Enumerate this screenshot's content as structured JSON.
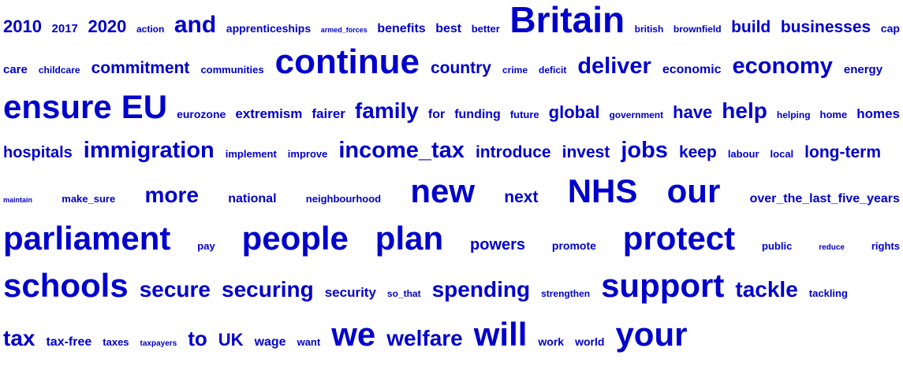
{
  "color": "#0000cc",
  "rows": [
    {
      "words": [
        {
          "text": "2010",
          "size": 22
        },
        {
          "text": "2017",
          "size": 15
        },
        {
          "text": "2020",
          "size": 22
        },
        {
          "text": "action",
          "size": 12
        },
        {
          "text": "and",
          "size": 30
        },
        {
          "text": "apprenticeships",
          "size": 14
        },
        {
          "text": "armed_forces",
          "size": 9
        },
        {
          "text": "benefits",
          "size": 16
        },
        {
          "text": "best",
          "size": 16
        },
        {
          "text": "better",
          "size": 13
        },
        {
          "text": "Britain",
          "size": 46
        },
        {
          "text": "british",
          "size": 12
        },
        {
          "text": "brownfield",
          "size": 12
        },
        {
          "text": "build",
          "size": 21
        },
        {
          "text": "businesses",
          "size": 21
        },
        {
          "text": "cap",
          "size": 14
        }
      ]
    },
    {
      "words": [
        {
          "text": "care",
          "size": 15
        },
        {
          "text": "childcare",
          "size": 12
        },
        {
          "text": "commitment",
          "size": 21
        },
        {
          "text": "communities",
          "size": 13
        },
        {
          "text": "continue",
          "size": 44
        },
        {
          "text": "country",
          "size": 21
        },
        {
          "text": "crime",
          "size": 12
        },
        {
          "text": "deficit",
          "size": 12
        },
        {
          "text": "deliver",
          "size": 29
        },
        {
          "text": "economic",
          "size": 16
        },
        {
          "text": "economy",
          "size": 29
        },
        {
          "text": "energy",
          "size": 15
        }
      ]
    },
    {
      "words": [
        {
          "text": "ensure",
          "size": 42
        },
        {
          "text": "EU",
          "size": 42
        },
        {
          "text": "eurozone",
          "size": 14
        },
        {
          "text": "extremism",
          "size": 17
        },
        {
          "text": "fairer",
          "size": 17
        },
        {
          "text": "family",
          "size": 28
        },
        {
          "text": "for",
          "size": 16
        },
        {
          "text": "funding",
          "size": 16
        },
        {
          "text": "future",
          "size": 13
        },
        {
          "text": "global",
          "size": 22
        },
        {
          "text": "government",
          "size": 12
        },
        {
          "text": "have",
          "size": 22
        },
        {
          "text": "help",
          "size": 28
        },
        {
          "text": "helping",
          "size": 12
        },
        {
          "text": "home",
          "size": 13
        },
        {
          "text": "homes",
          "size": 17
        }
      ]
    },
    {
      "words": [
        {
          "text": "hospitals",
          "size": 20
        },
        {
          "text": "immigration",
          "size": 29
        },
        {
          "text": "implement",
          "size": 13
        },
        {
          "text": "improve",
          "size": 13
        },
        {
          "text": "income_tax",
          "size": 29
        },
        {
          "text": "introduce",
          "size": 21
        },
        {
          "text": "invest",
          "size": 21
        },
        {
          "text": "jobs",
          "size": 29
        },
        {
          "text": "keep",
          "size": 21
        },
        {
          "text": "labour",
          "size": 13
        },
        {
          "text": "local",
          "size": 13
        },
        {
          "text": "long-term",
          "size": 21
        }
      ]
    },
    {
      "words": [
        {
          "text": "maintain",
          "size": 9
        },
        {
          "text": "make_sure",
          "size": 13
        },
        {
          "text": "more",
          "size": 28
        },
        {
          "text": "national",
          "size": 16
        },
        {
          "text": "neighbourhood",
          "size": 13
        },
        {
          "text": "new",
          "size": 42
        },
        {
          "text": "next",
          "size": 21
        },
        {
          "text": "NHS",
          "size": 42
        },
        {
          "text": "our",
          "size": 42
        },
        {
          "text": "over_the_last_five_years",
          "size": 16
        }
      ]
    },
    {
      "words": [
        {
          "text": "parliament",
          "size": 42
        },
        {
          "text": "pay",
          "size": 13
        },
        {
          "text": "people",
          "size": 42
        },
        {
          "text": "plan",
          "size": 42
        },
        {
          "text": "powers",
          "size": 20
        },
        {
          "text": "promote",
          "size": 14
        },
        {
          "text": "protect",
          "size": 42
        },
        {
          "text": "public",
          "size": 13
        },
        {
          "text": "reduce",
          "size": 10
        },
        {
          "text": "rights",
          "size": 13
        }
      ]
    },
    {
      "words": [
        {
          "text": "schools",
          "size": 42
        },
        {
          "text": "secure",
          "size": 28
        },
        {
          "text": "securing",
          "size": 28
        },
        {
          "text": "security",
          "size": 17
        },
        {
          "text": "so_that",
          "size": 12
        },
        {
          "text": "spending",
          "size": 28
        },
        {
          "text": "strengthen",
          "size": 12
        },
        {
          "text": "support",
          "size": 42
        },
        {
          "text": "tackle",
          "size": 28
        },
        {
          "text": "tackling",
          "size": 13
        }
      ]
    },
    {
      "words": [
        {
          "text": "tax",
          "size": 28
        },
        {
          "text": "tax-free",
          "size": 16
        },
        {
          "text": "taxes",
          "size": 13
        },
        {
          "text": "taxpayers",
          "size": 10
        },
        {
          "text": "to",
          "size": 26
        },
        {
          "text": "UK",
          "size": 22
        },
        {
          "text": "wage",
          "size": 16
        },
        {
          "text": "want",
          "size": 13
        },
        {
          "text": "we",
          "size": 42
        },
        {
          "text": "welfare",
          "size": 28
        },
        {
          "text": "will",
          "size": 42
        },
        {
          "text": "work",
          "size": 14
        },
        {
          "text": "world",
          "size": 14
        },
        {
          "text": "your",
          "size": 42
        }
      ]
    }
  ]
}
